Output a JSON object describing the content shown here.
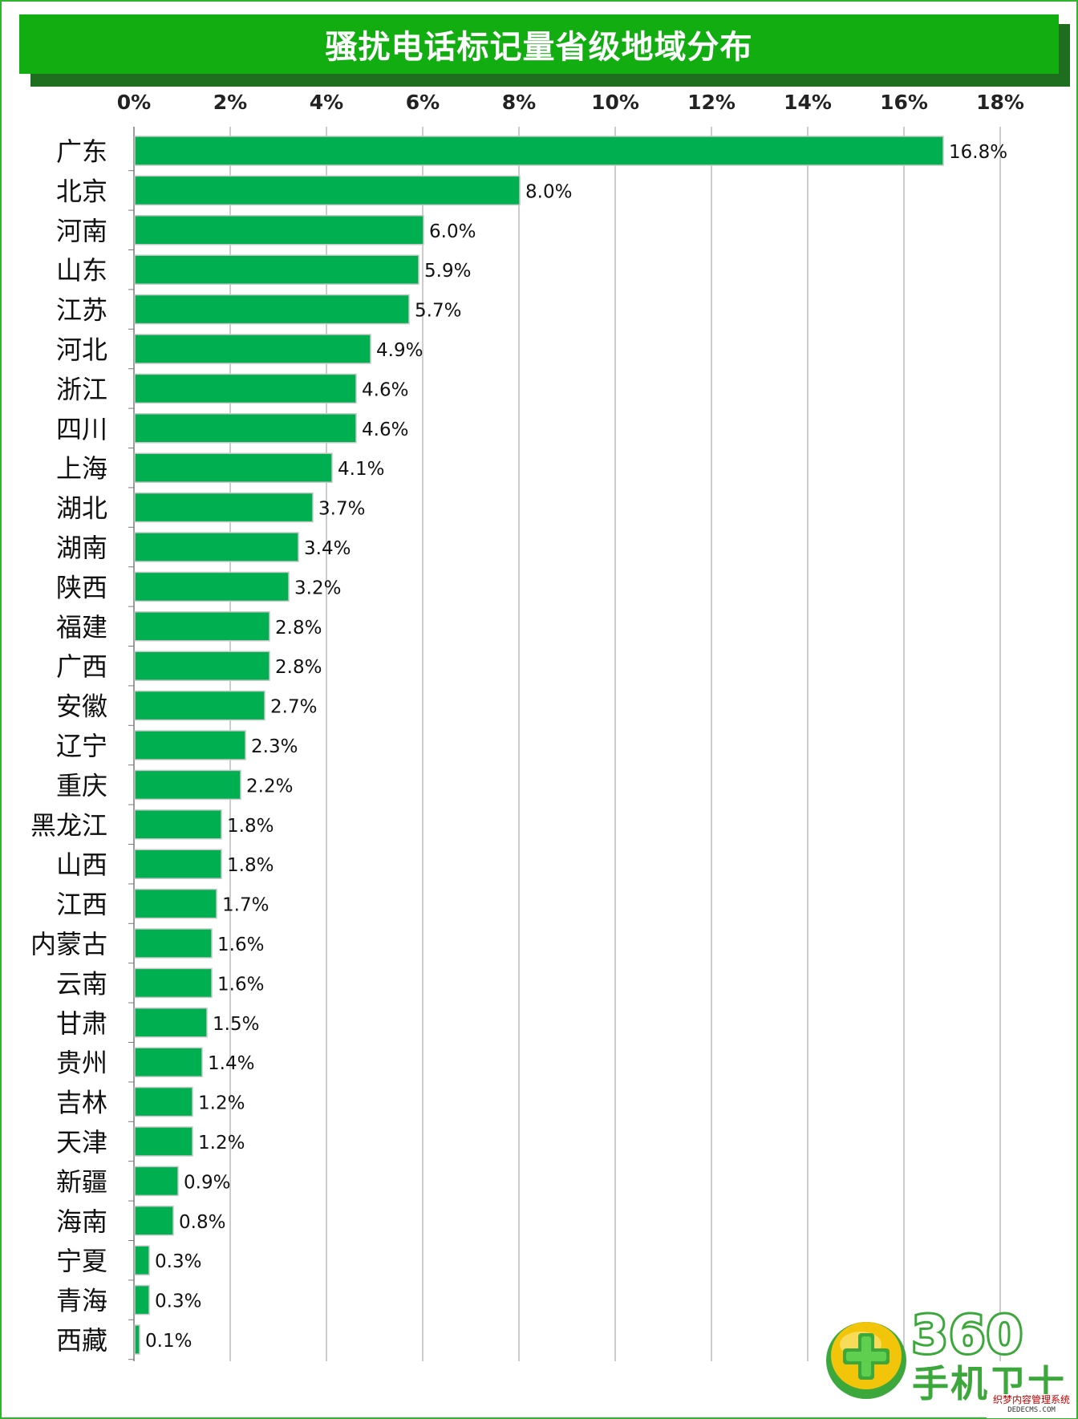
{
  "colors": {
    "bar": "#00b050",
    "bar_outline": "#c8c8c8",
    "grid": "#9a9a9a",
    "title_bg": "#11ad11",
    "frame": "#2fb52f"
  },
  "logo": {
    "number": "360",
    "name": "手机卫士",
    "icon": "plus-ball-icon"
  },
  "watermark": {
    "cn": "织梦内容管理系统",
    "en": "DEDECMS.COM"
  },
  "chart_data": {
    "type": "bar",
    "orientation": "horizontal",
    "title": "骚扰电话标记量省级地域分布",
    "xlabel": "",
    "ylabel": "",
    "xlim": [
      0,
      18
    ],
    "x_tick_labels": [
      "0%",
      "2%",
      "4%",
      "6%",
      "8%",
      "10%",
      "12%",
      "14%",
      "16%",
      "18%"
    ],
    "x_axis_position": "top",
    "grid": true,
    "legend": "none",
    "categories": [
      "广东",
      "北京",
      "河南",
      "山东",
      "江苏",
      "河北",
      "浙江",
      "四川",
      "上海",
      "湖北",
      "湖南",
      "陕西",
      "福建",
      "广西",
      "安徽",
      "辽宁",
      "重庆",
      "黑龙江",
      "山西",
      "江西",
      "内蒙古",
      "云南",
      "甘肃",
      "贵州",
      "吉林",
      "天津",
      "新疆",
      "海南",
      "宁夏",
      "青海",
      "西藏"
    ],
    "values": [
      16.8,
      8.0,
      6.0,
      5.9,
      5.7,
      4.9,
      4.6,
      4.6,
      4.1,
      3.7,
      3.4,
      3.2,
      2.8,
      2.8,
      2.7,
      2.3,
      2.2,
      1.8,
      1.8,
      1.7,
      1.6,
      1.6,
      1.5,
      1.4,
      1.2,
      1.2,
      0.9,
      0.8,
      0.3,
      0.3,
      0.1
    ],
    "data_labels": [
      "16.8%",
      "8.0%",
      "6.0%",
      "5.9%",
      "5.7%",
      "4.9%",
      "4.6%",
      "4.6%",
      "4.1%",
      "3.7%",
      "3.4%",
      "3.2%",
      "2.8%",
      "2.8%",
      "2.7%",
      "2.3%",
      "2.2%",
      "1.8%",
      "1.8%",
      "1.7%",
      "1.6%",
      "1.6%",
      "1.5%",
      "1.4%",
      "1.2%",
      "1.2%",
      "0.9%",
      "0.8%",
      "0.3%",
      "0.3%",
      "0.1%"
    ]
  }
}
